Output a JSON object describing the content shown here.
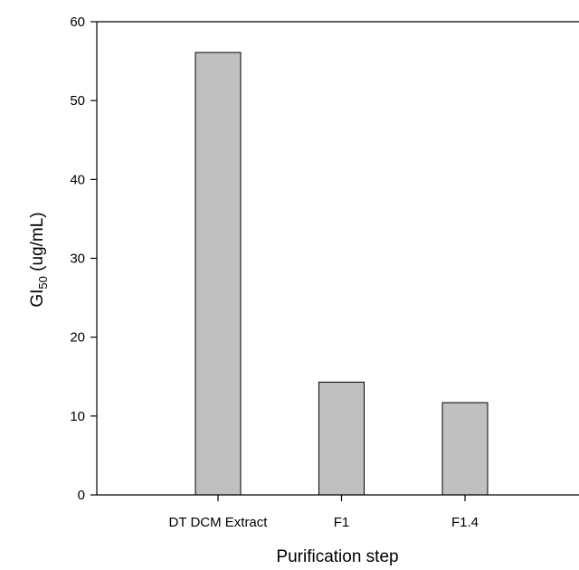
{
  "chart_data": {
    "type": "bar",
    "categories": [
      "DT DCM Extract",
      "F1",
      "F1.4"
    ],
    "values": [
      56.1,
      14.3,
      11.7
    ],
    "title": "",
    "xlabel": "Purification step",
    "ylabel": {
      "main": "GI",
      "subscript": "50",
      "unit": " (ug/mL)"
    },
    "ylim": [
      0,
      60
    ],
    "yticks": [
      "0",
      "10",
      "20",
      "30",
      "40",
      "50",
      "60"
    ],
    "grid": false,
    "legend": "none",
    "bar_color": "#c0c0c0",
    "bar_edge_color": "#000000"
  }
}
